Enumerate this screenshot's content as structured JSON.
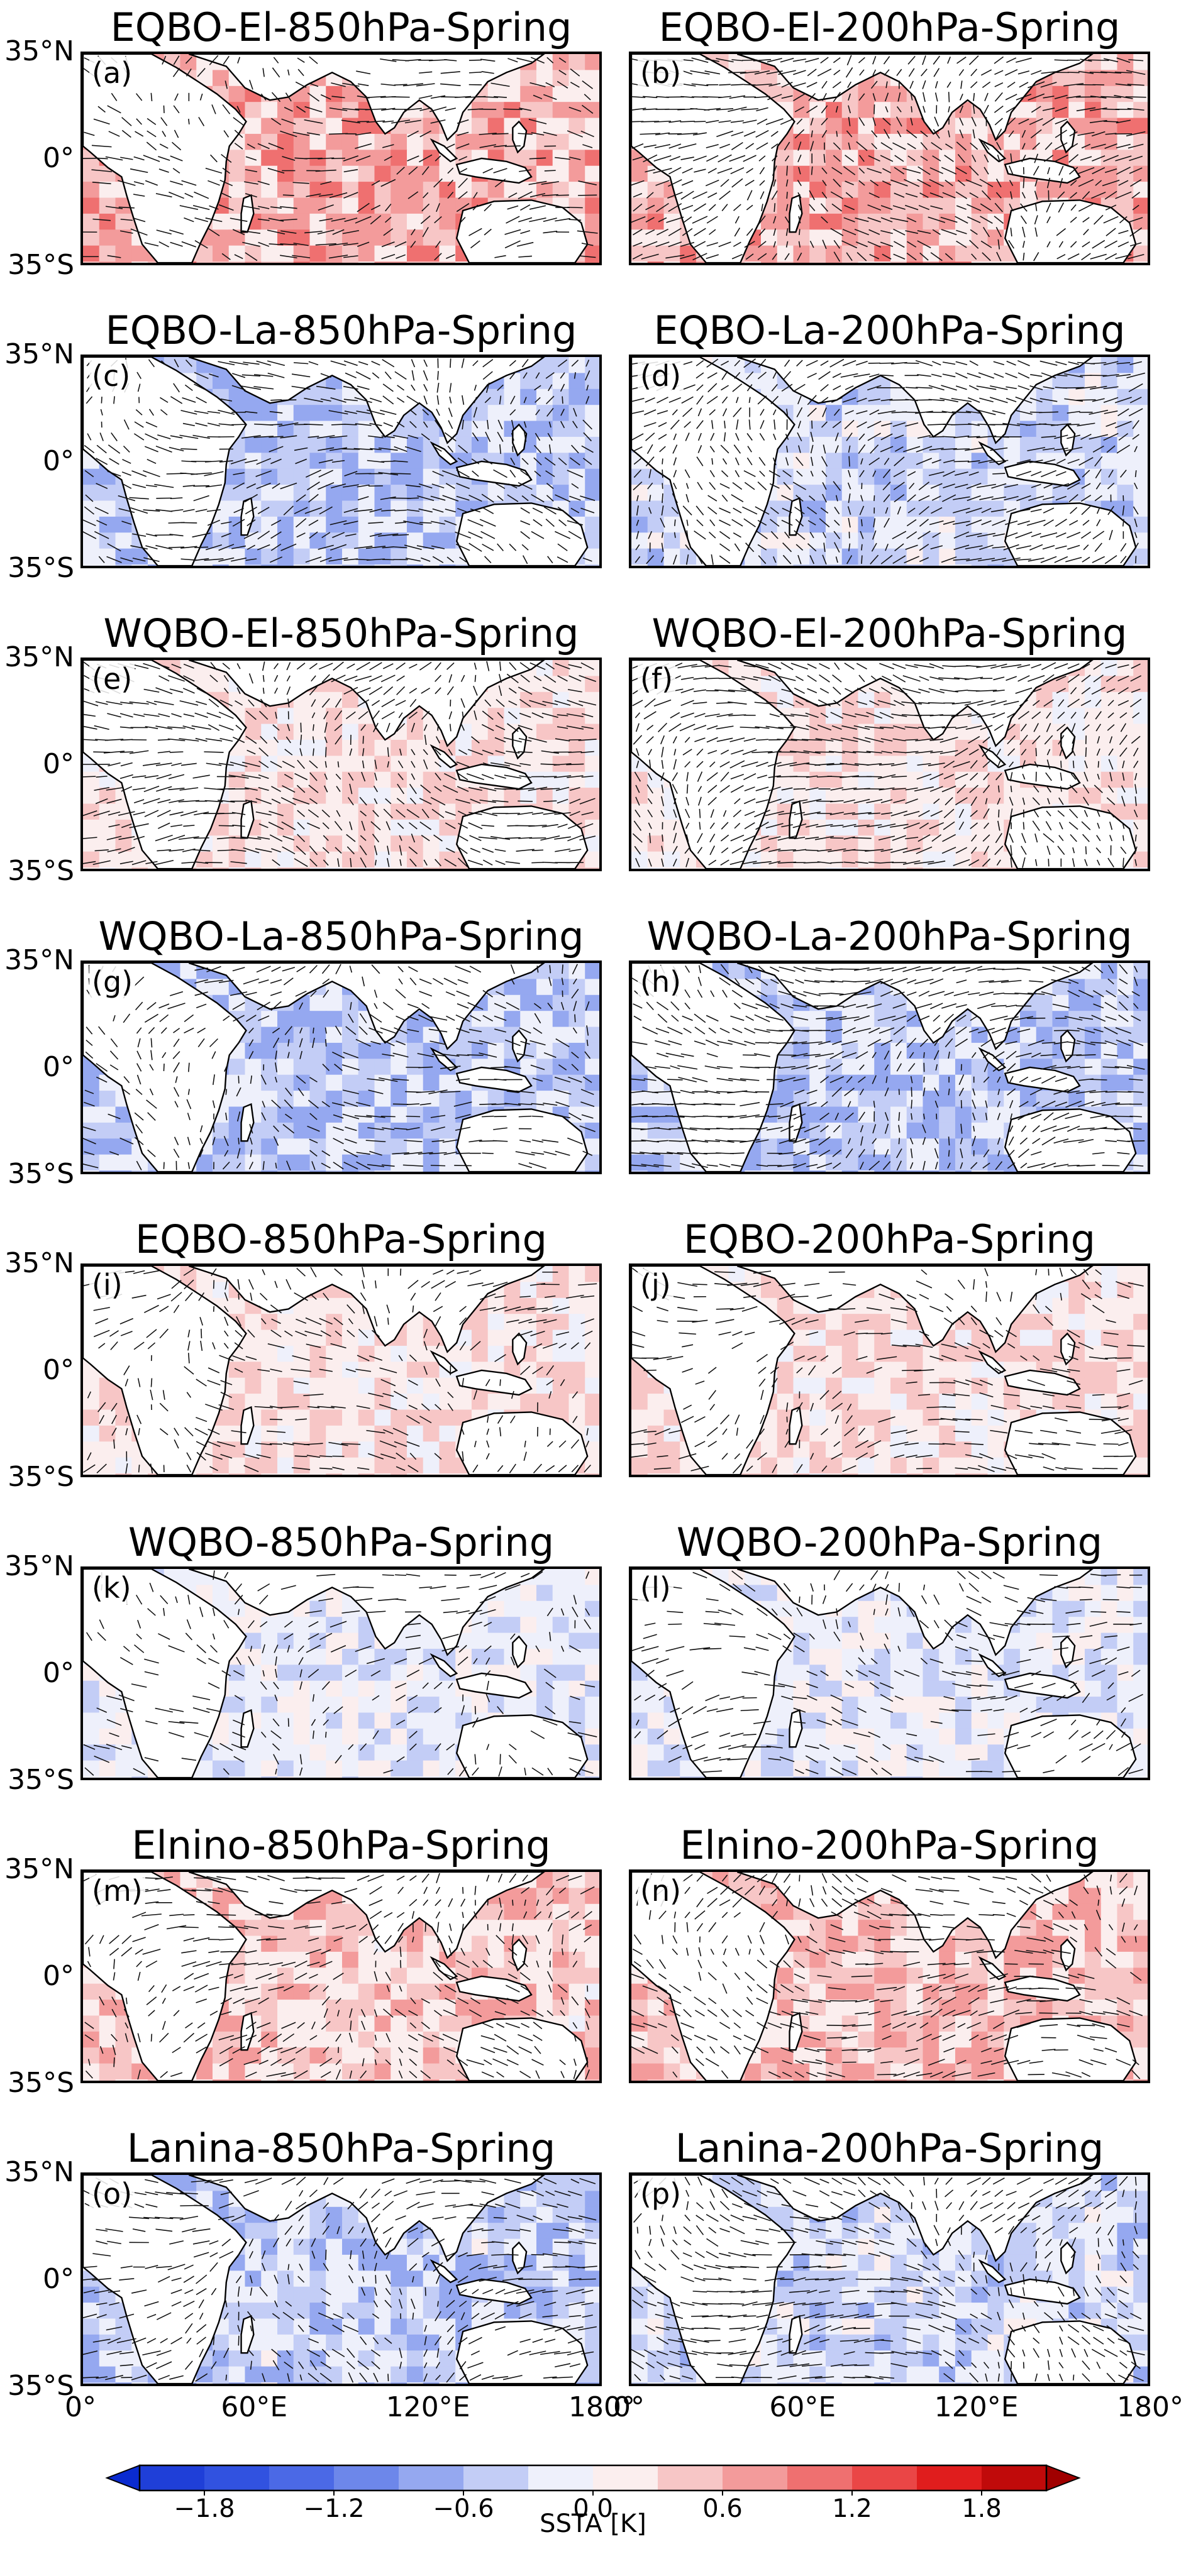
{
  "figure": {
    "panels": [
      {
        "letter": "(a)",
        "title": "EQBO-El-850hPa-Spring",
        "sst": 0.55,
        "winds": 0.55
      },
      {
        "letter": "(b)",
        "title": "EQBO-El-200hPa-Spring",
        "sst": 0.55,
        "winds": 0.9
      },
      {
        "letter": "(c)",
        "title": "EQBO-La-850hPa-Spring",
        "sst": -0.45,
        "winds": 0.7
      },
      {
        "letter": "(d)",
        "title": "EQBO-La-200hPa-Spring",
        "sst": -0.3,
        "winds": 0.9
      },
      {
        "letter": "(e)",
        "title": "WQBO-El-850hPa-Spring",
        "sst": 0.25,
        "winds": 0.85
      },
      {
        "letter": "(f)",
        "title": "WQBO-El-200hPa-Spring",
        "sst": 0.2,
        "winds": 0.95
      },
      {
        "letter": "(g)",
        "title": "WQBO-La-850hPa-Spring",
        "sst": -0.45,
        "winds": 0.6
      },
      {
        "letter": "(h)",
        "title": "WQBO-La-200hPa-Spring",
        "sst": -0.45,
        "winds": 0.85
      },
      {
        "letter": "(i)",
        "title": "EQBO-850hPa-Spring",
        "sst": 0.25,
        "winds": 0.45
      },
      {
        "letter": "(j)",
        "title": "EQBO-200hPa-Spring",
        "sst": 0.25,
        "winds": 0.4
      },
      {
        "letter": "(k)",
        "title": "WQBO-850hPa-Spring",
        "sst": -0.15,
        "winds": 0.35
      },
      {
        "letter": "(l)",
        "title": "WQBO-200hPa-Spring",
        "sst": -0.15,
        "winds": 0.45
      },
      {
        "letter": "(m)",
        "title": "Elnino-850hPa-Spring",
        "sst": 0.4,
        "winds": 0.55
      },
      {
        "letter": "(n)",
        "title": "Elnino-200hPa-Spring",
        "sst": 0.45,
        "winds": 0.6
      },
      {
        "letter": "(o)",
        "title": "Lanina-850hPa-Spring",
        "sst": -0.4,
        "winds": 0.6
      },
      {
        "letter": "(p)",
        "title": "Lanina-200hPa-Spring",
        "sst": -0.3,
        "winds": 0.75
      }
    ],
    "lat_ticks": [
      "35°N",
      "0°",
      "35°S"
    ],
    "lon_ticks": [
      "0°",
      "60°E",
      "120°E",
      "180°"
    ]
  },
  "colorbar": {
    "label": "SSTA [K]",
    "range": [
      -2.1,
      2.1
    ],
    "levels": [
      -2.1,
      -1.8,
      -1.5,
      -1.2,
      -0.9,
      -0.6,
      -0.3,
      0.0,
      0.3,
      0.6,
      0.9,
      1.2,
      1.5,
      1.8,
      2.1
    ],
    "tick_values": [
      -1.8,
      -1.2,
      -0.6,
      0.0,
      0.6,
      1.2,
      1.8
    ],
    "tick_labels": [
      "−1.8",
      "−1.2",
      "−0.6",
      "0.0",
      "0.6",
      "1.2",
      "1.8"
    ],
    "colors": [
      "#1f3fd8",
      "#3152e0",
      "#4b69e6",
      "#6d87ea",
      "#95a8f0",
      "#c3cdf6",
      "#eef0fb",
      "#fbeeee",
      "#f7c6c6",
      "#f39b9b",
      "#ef7070",
      "#ea4646",
      "#e01d1d",
      "#c00a0a"
    ],
    "extend": "both"
  }
}
